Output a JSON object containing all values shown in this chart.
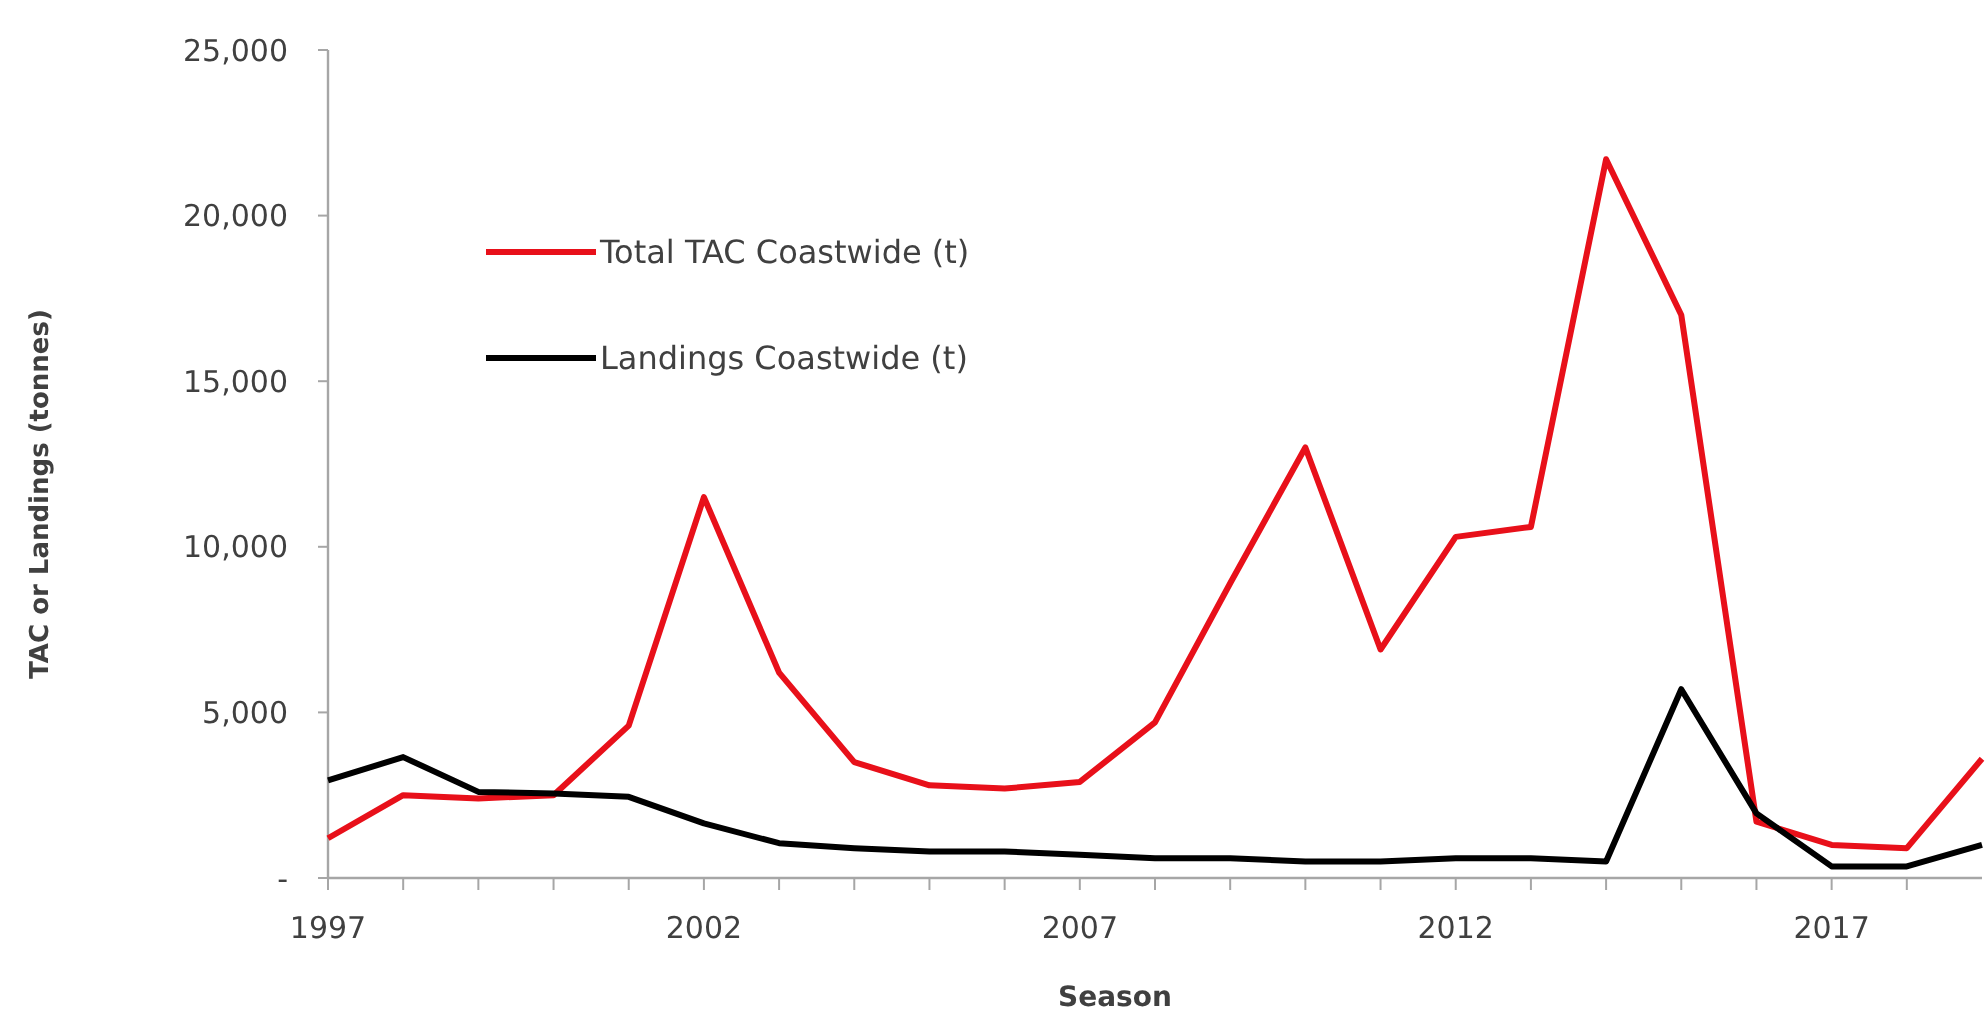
{
  "chart_data": {
    "type": "line",
    "xlabel": "Season",
    "ylabel": "TAC or Landings (tonnes)",
    "x": [
      1997,
      1998,
      1999,
      2000,
      2001,
      2002,
      2003,
      2004,
      2005,
      2006,
      2007,
      2008,
      2009,
      2010,
      2011,
      2012,
      2013,
      2014,
      2015,
      2016,
      2017,
      2018,
      2019
    ],
    "series": [
      {
        "name": "Total TAC Coastwide (t)",
        "color": "#e8101a",
        "values": [
          1200,
          2500,
          2400,
          2500,
          4600,
          11500,
          6200,
          3500,
          2800,
          2700,
          2900,
          4700,
          8900,
          13000,
          6900,
          10300,
          10600,
          21700,
          17000,
          1700,
          1000,
          900,
          3600
        ]
      },
      {
        "name": "Landings Coastwide (t)",
        "color": "#000000",
        "values": [
          2950,
          3650,
          2600,
          2550,
          2450,
          1650,
          1050,
          900,
          800,
          800,
          700,
          600,
          600,
          500,
          500,
          600,
          600,
          500,
          5700,
          1950,
          350,
          350,
          1000
        ]
      }
    ],
    "xlim": [
      1997,
      2019
    ],
    "xticks": [
      1997,
      {
        "value": 1998,
        "label": null
      },
      {
        "value": 1999,
        "label": null
      },
      {
        "value": 2000,
        "label": null
      },
      {
        "value": 2001,
        "label": null
      },
      2002,
      {
        "value": 2003,
        "label": null
      },
      {
        "value": 2004,
        "label": null
      },
      {
        "value": 2005,
        "label": null
      },
      {
        "value": 2006,
        "label": null
      },
      2007,
      {
        "value": 2008,
        "label": null
      },
      {
        "value": 2009,
        "label": null
      },
      {
        "value": 2010,
        "label": null
      },
      {
        "value": 2011,
        "label": null
      },
      2012,
      {
        "value": 2013,
        "label": null
      },
      {
        "value": 2014,
        "label": null
      },
      {
        "value": 2015,
        "label": null
      },
      {
        "value": 2016,
        "label": null
      },
      2017,
      {
        "value": 2018,
        "label": null
      }
    ],
    "ylim": [
      0,
      25000
    ],
    "yticks": [
      {
        "value": 0,
        "label": "-"
      },
      {
        "value": 5000,
        "label": "5,000"
      },
      {
        "value": 10000,
        "label": "10,000"
      },
      {
        "value": 15000,
        "label": "15,000"
      },
      {
        "value": 20000,
        "label": "20,000"
      },
      {
        "value": 25000,
        "label": "25,000"
      }
    ],
    "grid": false,
    "legend": "top left",
    "marker": "none",
    "line_style": "solid"
  }
}
